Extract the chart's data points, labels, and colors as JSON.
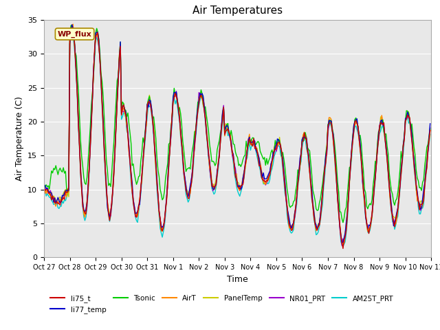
{
  "title": "Air Temperatures",
  "xlabel": "Time",
  "ylabel": "Air Temperature (C)",
  "ylim": [
    0,
    35
  ],
  "series_colors": {
    "li75_t": "#cc0000",
    "li77_temp": "#0000cc",
    "Tsonic": "#00cc00",
    "AirT": "#ff8800",
    "PanelTemp": "#cccc00",
    "NR01_PRT": "#9900cc",
    "AM25T_PRT": "#00cccc"
  },
  "wp_flux_label": "WP_flux",
  "wp_flux_color": "#880000",
  "wp_flux_bg": "#ffffcc",
  "wp_flux_border": "#aa8800",
  "background_color": "#e8e8e8",
  "title_fontsize": 11,
  "axis_label_fontsize": 9,
  "tick_fontsize": 8
}
